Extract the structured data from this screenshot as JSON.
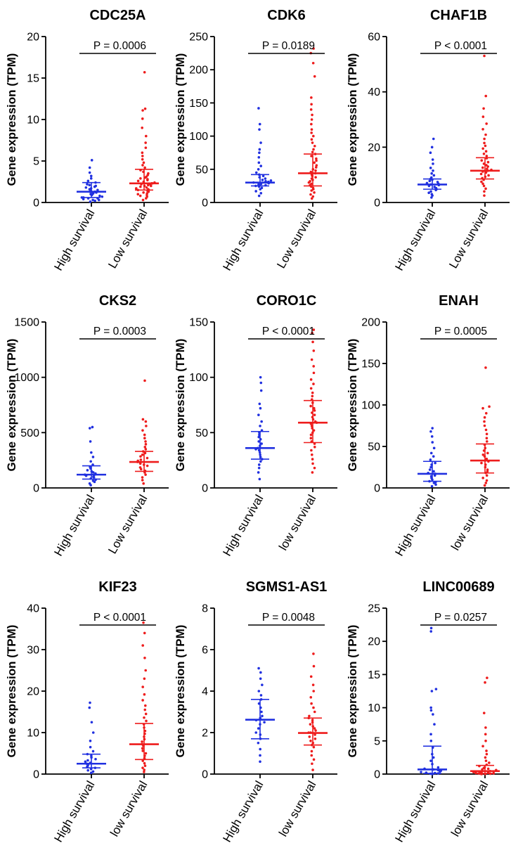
{
  "figure": {
    "ylabel": "Gene expression (TPM)"
  },
  "chart_data": [
    {
      "type": "scatter",
      "title": "CDC25A",
      "ylabel": "Gene expression (TPM)",
      "ylim": [
        0,
        20
      ],
      "yticks": [
        0,
        5,
        10,
        15,
        20
      ],
      "categories": [
        "High survival",
        "Low survival"
      ],
      "pvalue": "P = 0.0006",
      "groups": [
        {
          "name": "High survival",
          "color": "#2030e0",
          "median": 1.3,
          "q1": 0.6,
          "q3": 2.4,
          "values": [
            0.1,
            0.2,
            0.3,
            0.3,
            0.4,
            0.5,
            0.5,
            0.6,
            0.6,
            0.7,
            0.8,
            0.9,
            1.0,
            1.0,
            1.1,
            1.2,
            1.3,
            1.3,
            1.4,
            1.5,
            1.6,
            1.7,
            1.8,
            1.9,
            2.0,
            2.1,
            2.2,
            2.4,
            2.6,
            2.9,
            3.2,
            3.6,
            4.2,
            5.1
          ]
        },
        {
          "name": "Low survival",
          "color": "#ee1c1c",
          "median": 2.3,
          "q1": 1.5,
          "q3": 4.0,
          "values": [
            0.3,
            0.5,
            0.7,
            0.8,
            0.9,
            1.0,
            1.1,
            1.2,
            1.3,
            1.4,
            1.5,
            1.5,
            1.6,
            1.7,
            1.8,
            1.9,
            2.0,
            2.0,
            2.1,
            2.2,
            2.2,
            2.3,
            2.3,
            2.4,
            2.5,
            2.6,
            2.7,
            2.8,
            2.9,
            3.0,
            3.1,
            3.3,
            3.5,
            3.7,
            3.9,
            4.2,
            4.5,
            4.8,
            5.2,
            5.6,
            6.0,
            6.6,
            7.2,
            8.0,
            9.0,
            10.1,
            11.1,
            11.3,
            15.7
          ]
        }
      ]
    },
    {
      "type": "scatter",
      "title": "CDK6",
      "ylabel": "Gene expression (TPM)",
      "ylim": [
        0,
        250
      ],
      "yticks": [
        0,
        50,
        100,
        150,
        200,
        250
      ],
      "categories": [
        "High survival",
        "Low survival"
      ],
      "pvalue": "P = 0.0189",
      "groups": [
        {
          "name": "High survival",
          "color": "#2030e0",
          "median": 30,
          "q1": 25,
          "q3": 42,
          "values": [
            10,
            14,
            17,
            20,
            22,
            24,
            25,
            26,
            27,
            28,
            29,
            30,
            30,
            31,
            32,
            33,
            34,
            36,
            38,
            40,
            42,
            45,
            50,
            55,
            60,
            68,
            75,
            80,
            90,
            110,
            118,
            142
          ]
        },
        {
          "name": "Low survival",
          "color": "#ee1c1c",
          "median": 44,
          "q1": 25,
          "q3": 73,
          "values": [
            6,
            9,
            12,
            15,
            18,
            20,
            22,
            24,
            26,
            28,
            30,
            32,
            34,
            36,
            38,
            40,
            42,
            44,
            44,
            46,
            48,
            50,
            53,
            56,
            60,
            63,
            66,
            70,
            73,
            76,
            80,
            85,
            90,
            95,
            100,
            105,
            110,
            118,
            125,
            132,
            140,
            148,
            158,
            190,
            210,
            225,
            232
          ]
        }
      ]
    },
    {
      "type": "scatter",
      "title": "CHAF1B",
      "ylabel": "Gene expression (TPM)",
      "ylim": [
        0,
        60
      ],
      "yticks": [
        0,
        20,
        40,
        60
      ],
      "categories": [
        "High survival",
        "Low survival"
      ],
      "pvalue": "P  < 0.0001",
      "groups": [
        {
          "name": "High survival",
          "color": "#2030e0",
          "median": 6.5,
          "q1": 4.8,
          "q3": 8.5,
          "values": [
            1.8,
            2.5,
            3.0,
            3.5,
            4.0,
            4.5,
            4.8,
            5.2,
            5.6,
            6.0,
            6.3,
            6.5,
            6.8,
            7.0,
            7.4,
            7.8,
            8.2,
            8.5,
            9.0,
            9.8,
            10.5,
            11.5,
            12.5,
            14.0,
            15.5,
            18.0,
            20.0,
            23.0
          ]
        },
        {
          "name": "Low survival",
          "color": "#ee1c1c",
          "median": 11.5,
          "q1": 8.5,
          "q3": 16.2,
          "values": [
            2.5,
            4.0,
            5.0,
            6.0,
            6.8,
            7.5,
            8.2,
            8.8,
            9.3,
            9.8,
            10.3,
            10.8,
            11.2,
            11.5,
            11.8,
            12.2,
            12.6,
            13.0,
            13.5,
            14.0,
            14.6,
            15.2,
            16.0,
            16.8,
            17.6,
            18.5,
            19.5,
            20.5,
            21.5,
            23.0,
            24.5,
            26.5,
            28.5,
            31.0,
            34.0,
            38.5,
            53.0
          ]
        }
      ]
    },
    {
      "type": "scatter",
      "title": "CKS2",
      "ylabel": "Gene expression (TPM)",
      "ylim": [
        0,
        1500
      ],
      "yticks": [
        0,
        500,
        1000,
        1500
      ],
      "categories": [
        "High survival",
        "Low survival"
      ],
      "pvalue": "P  = 0.0003",
      "groups": [
        {
          "name": "High survival",
          "color": "#2030e0",
          "median": 120,
          "q1": 80,
          "q3": 200,
          "values": [
            25,
            40,
            55,
            65,
            75,
            85,
            95,
            100,
            110,
            115,
            120,
            130,
            140,
            150,
            160,
            175,
            190,
            210,
            240,
            280,
            320,
            420,
            540,
            550
          ]
        },
        {
          "name": "Low survival",
          "color": "#ee1c1c",
          "median": 235,
          "q1": 150,
          "q3": 330,
          "values": [
            40,
            70,
            95,
            120,
            140,
            155,
            170,
            185,
            200,
            210,
            220,
            230,
            235,
            245,
            255,
            270,
            285,
            300,
            315,
            330,
            350,
            370,
            395,
            420,
            450,
            480,
            520,
            560,
            600,
            620,
            970
          ]
        }
      ]
    },
    {
      "type": "scatter",
      "title": "CORO1C",
      "ylabel": "Gene expression (TPM)",
      "ylim": [
        0,
        150
      ],
      "yticks": [
        0,
        50,
        100,
        150
      ],
      "categories": [
        "High survival",
        "low survival"
      ],
      "pvalue": "P  < 0.0001",
      "groups": [
        {
          "name": "High survival",
          "color": "#2030e0",
          "median": 36,
          "q1": 26,
          "q3": 51,
          "values": [
            8,
            14,
            18,
            21,
            24,
            26,
            28,
            30,
            32,
            34,
            35,
            36,
            38,
            40,
            42,
            44,
            46,
            48,
            50,
            52,
            56,
            60,
            66,
            72,
            76,
            88,
            95,
            100
          ]
        },
        {
          "name": "low survival",
          "color": "#ee1c1c",
          "median": 59,
          "q1": 41,
          "q3": 79,
          "values": [
            14,
            18,
            22,
            26,
            30,
            34,
            37,
            40,
            42,
            45,
            48,
            50,
            52,
            54,
            56,
            58,
            59,
            60,
            62,
            64,
            66,
            68,
            70,
            72,
            74,
            77,
            80,
            83,
            86,
            90,
            94,
            98,
            104,
            110,
            116,
            124,
            132,
            140,
            143
          ]
        }
      ]
    },
    {
      "type": "scatter",
      "title": "ENAH",
      "ylabel": "Gene expression (TPM)",
      "ylim": [
        0,
        200
      ],
      "yticks": [
        0,
        50,
        100,
        150,
        200
      ],
      "categories": [
        "High survival",
        "low survival"
      ],
      "pvalue": "P  = 0.0005",
      "groups": [
        {
          "name": "High survival",
          "color": "#2030e0",
          "median": 17,
          "q1": 8,
          "q3": 32,
          "values": [
            2,
            4,
            6,
            7,
            8,
            10,
            12,
            14,
            15,
            17,
            18,
            20,
            22,
            25,
            28,
            30,
            34,
            38,
            42,
            48,
            55,
            62,
            68,
            72
          ]
        },
        {
          "name": "low survival",
          "color": "#ee1c1c",
          "median": 33,
          "q1": 18,
          "q3": 53,
          "values": [
            3,
            6,
            9,
            12,
            15,
            18,
            20,
            22,
            25,
            28,
            30,
            32,
            33,
            35,
            38,
            40,
            42,
            45,
            48,
            52,
            56,
            60,
            65,
            70,
            75,
            80,
            85,
            90,
            96,
            98,
            145
          ]
        }
      ]
    },
    {
      "type": "scatter",
      "title": "KIF23",
      "ylabel": "Gene expression (TPM)",
      "ylim": [
        0,
        40
      ],
      "yticks": [
        0,
        10,
        20,
        30,
        40
      ],
      "categories": [
        "High survival",
        "low survival"
      ],
      "pvalue": "P  < 0.0001",
      "groups": [
        {
          "name": "High survival",
          "color": "#2030e0",
          "median": 2.5,
          "q1": 1.5,
          "q3": 4.8,
          "values": [
            0.3,
            0.6,
            0.9,
            1.2,
            1.5,
            1.8,
            2.0,
            2.3,
            2.5,
            2.7,
            3.0,
            3.3,
            3.6,
            4.0,
            4.4,
            4.8,
            5.5,
            6.5,
            8.0,
            10.0,
            12.5,
            16.0,
            17.2
          ]
        },
        {
          "name": "low survival",
          "color": "#ee1c1c",
          "median": 7.2,
          "q1": 3.5,
          "q3": 12.2,
          "values": [
            0.5,
            1.0,
            1.5,
            2.0,
            2.6,
            3.2,
            3.8,
            4.4,
            5.0,
            5.6,
            6.2,
            6.8,
            7.2,
            7.8,
            8.4,
            9.0,
            9.7,
            10.4,
            11.2,
            12.0,
            12.8,
            13.6,
            14.5,
            15.5,
            16.5,
            17.8,
            19.2,
            21.0,
            23.0,
            25.0,
            28.0,
            31.0,
            34.0,
            36.5
          ]
        }
      ]
    },
    {
      "type": "scatter",
      "title": "SGMS1-AS1",
      "ylabel": "Gene expression (TPM)",
      "ylim": [
        0,
        8
      ],
      "yticks": [
        0,
        2,
        4,
        6,
        8
      ],
      "categories": [
        "High survival",
        "low survival"
      ],
      "pvalue": "P  = 0.0048",
      "groups": [
        {
          "name": "High survival",
          "color": "#2030e0",
          "median": 2.62,
          "q1": 1.7,
          "q3": 3.6,
          "values": [
            0.6,
            0.9,
            1.2,
            1.5,
            1.7,
            1.9,
            2.0,
            2.2,
            2.4,
            2.5,
            2.6,
            2.7,
            2.8,
            3.0,
            3.2,
            3.4,
            3.6,
            3.8,
            4.0,
            4.3,
            4.6,
            4.9,
            5.1
          ]
        },
        {
          "name": "low survival",
          "color": "#ee1c1c",
          "median": 1.98,
          "q1": 1.4,
          "q3": 2.7,
          "values": [
            0.2,
            0.5,
            0.7,
            0.9,
            1.1,
            1.3,
            1.4,
            1.5,
            1.6,
            1.7,
            1.8,
            1.9,
            2.0,
            2.0,
            2.1,
            2.2,
            2.3,
            2.4,
            2.5,
            2.6,
            2.7,
            2.8,
            3.0,
            3.2,
            3.4,
            3.7,
            4.0,
            4.3,
            4.7,
            5.2,
            5.8
          ]
        }
      ]
    },
    {
      "type": "scatter",
      "title": "LINC00689",
      "ylabel": "Gene expression (TPM)",
      "ylim": [
        0,
        25
      ],
      "yticks": [
        0,
        5,
        10,
        15,
        20,
        25
      ],
      "categories": [
        "High survival",
        "low survival"
      ],
      "pvalue": "P  = 0.0257",
      "groups": [
        {
          "name": "High survival",
          "color": "#2030e0",
          "median": 0.7,
          "q1": 0.1,
          "q3": 4.2,
          "values": [
            0.0,
            0.05,
            0.1,
            0.15,
            0.2,
            0.3,
            0.4,
            0.5,
            0.6,
            0.7,
            0.8,
            1.0,
            1.5,
            2.0,
            2.5,
            3.0,
            4.0,
            5.0,
            6.0,
            7.5,
            9.0,
            9.6,
            10.0,
            12.5,
            12.8,
            21.5,
            22.0
          ]
        },
        {
          "name": "low survival",
          "color": "#ee1c1c",
          "median": 0.45,
          "q1": 0.1,
          "q3": 1.3,
          "values": [
            0.0,
            0.0,
            0.05,
            0.05,
            0.1,
            0.1,
            0.15,
            0.2,
            0.2,
            0.25,
            0.3,
            0.35,
            0.4,
            0.45,
            0.5,
            0.6,
            0.7,
            0.8,
            0.9,
            1.0,
            1.2,
            1.4,
            1.7,
            2.0,
            2.5,
            3.0,
            3.5,
            4.2,
            5.0,
            6.0,
            7.0,
            9.2,
            13.8,
            14.5
          ]
        }
      ]
    }
  ]
}
